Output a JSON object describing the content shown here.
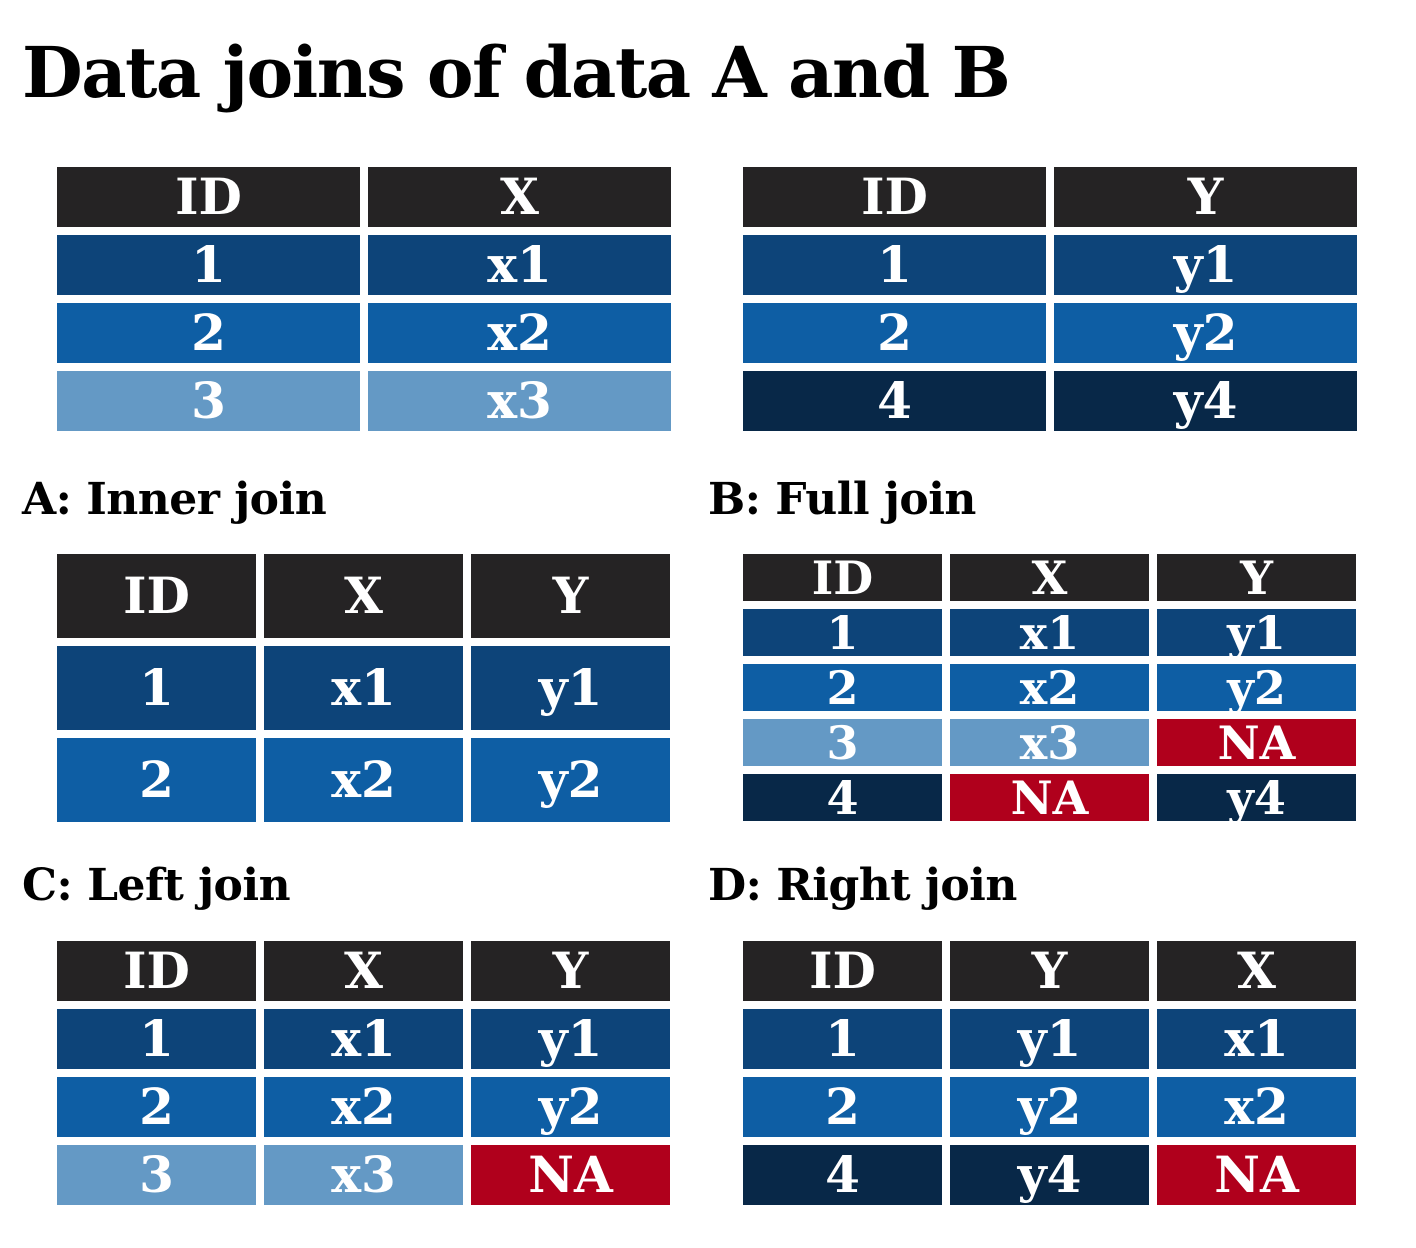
{
  "title": "Data joins of data A and B",
  "colors": {
    "header": "#252324",
    "id_1": "#0d4479",
    "id_2": "#0e5ea4",
    "id_3": "#6499c5",
    "id_4": "#082848",
    "missing_na": "#b0001c"
  },
  "tables": {
    "data_a": {
      "heading": "",
      "columns": [
        "ID",
        "X"
      ],
      "rows": [
        {
          "id": "1",
          "cells": [
            "1",
            "x1"
          ],
          "na": []
        },
        {
          "id": "2",
          "cells": [
            "2",
            "x2"
          ],
          "na": []
        },
        {
          "id": "3",
          "cells": [
            "3",
            "x3"
          ],
          "na": []
        }
      ]
    },
    "data_b": {
      "heading": "",
      "columns": [
        "ID",
        "Y"
      ],
      "rows": [
        {
          "id": "1",
          "cells": [
            "1",
            "y1"
          ],
          "na": []
        },
        {
          "id": "2",
          "cells": [
            "2",
            "y2"
          ],
          "na": []
        },
        {
          "id": "4",
          "cells": [
            "4",
            "y4"
          ],
          "na": []
        }
      ]
    },
    "inner_join": {
      "heading": "A: Inner join",
      "columns": [
        "ID",
        "X",
        "Y"
      ],
      "rows": [
        {
          "id": "1",
          "cells": [
            "1",
            "x1",
            "y1"
          ],
          "na": []
        },
        {
          "id": "2",
          "cells": [
            "2",
            "x2",
            "y2"
          ],
          "na": []
        }
      ]
    },
    "full_join": {
      "heading": "B: Full join",
      "columns": [
        "ID",
        "X",
        "Y"
      ],
      "rows": [
        {
          "id": "1",
          "cells": [
            "1",
            "x1",
            "y1"
          ],
          "na": []
        },
        {
          "id": "2",
          "cells": [
            "2",
            "x2",
            "y2"
          ],
          "na": []
        },
        {
          "id": "3",
          "cells": [
            "3",
            "x3",
            "NA"
          ],
          "na": [
            2
          ]
        },
        {
          "id": "4",
          "cells": [
            "4",
            "NA",
            "y4"
          ],
          "na": [
            1
          ]
        }
      ]
    },
    "left_join": {
      "heading": "C: Left join",
      "columns": [
        "ID",
        "X",
        "Y"
      ],
      "rows": [
        {
          "id": "1",
          "cells": [
            "1",
            "x1",
            "y1"
          ],
          "na": []
        },
        {
          "id": "2",
          "cells": [
            "2",
            "x2",
            "y2"
          ],
          "na": []
        },
        {
          "id": "3",
          "cells": [
            "3",
            "x3",
            "NA"
          ],
          "na": [
            2
          ]
        }
      ]
    },
    "right_join": {
      "heading": "D: Right join",
      "columns": [
        "ID",
        "Y",
        "X"
      ],
      "rows": [
        {
          "id": "1",
          "cells": [
            "1",
            "y1",
            "x1"
          ],
          "na": []
        },
        {
          "id": "2",
          "cells": [
            "2",
            "y2",
            "x2"
          ],
          "na": []
        },
        {
          "id": "4",
          "cells": [
            "4",
            "y4",
            "NA"
          ],
          "na": [
            2
          ]
        }
      ]
    }
  }
}
